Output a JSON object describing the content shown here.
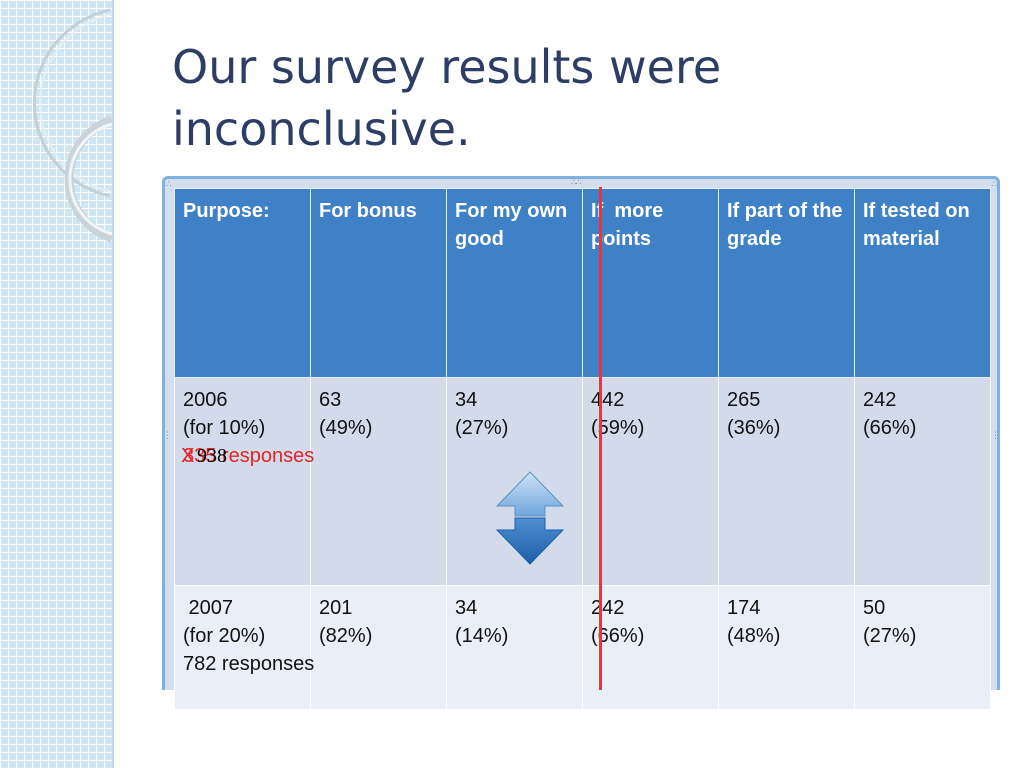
{
  "slide": {
    "title": "Our survey results were inconclusive."
  },
  "table": {
    "headers": [
      "Purpose:",
      "For bonus",
      "For my own good",
      "If  more points",
      "If part of the grade",
      "If tested on material"
    ],
    "rows": [
      {
        "label_lines": [
          "2006",
          "(for 10%)"
        ],
        "struck_count": "335",
        "corrected_count": "938",
        "responses_word": "responses",
        "cells": [
          [
            "63",
            "(49%)"
          ],
          [
            "34",
            "(27%)"
          ],
          [
            "442",
            "(59%)"
          ],
          [
            "265",
            "(36%)"
          ],
          [
            "242",
            "(66%)"
          ]
        ]
      },
      {
        "label_lines": [
          " 2007",
          "(for 20%)",
          "782 responses"
        ],
        "cells": [
          [
            "201",
            "(82%)"
          ],
          [
            "34",
            "(14%)"
          ],
          [
            "242",
            "(66%)"
          ],
          [
            "174",
            "(48%)"
          ],
          [
            "50",
            "(27%)"
          ]
        ]
      }
    ]
  },
  "annotation": {
    "strike_mark": "X",
    "arrow_icon": "up-down-arrow-icon",
    "divider_color": "#e3393d"
  },
  "colors": {
    "header_bg": "#3f81c6",
    "row_2006_bg": "#d3dbeb",
    "row_2007_bg": "#eaeef6",
    "title": "#2e3d66",
    "strike": "#e22424"
  }
}
